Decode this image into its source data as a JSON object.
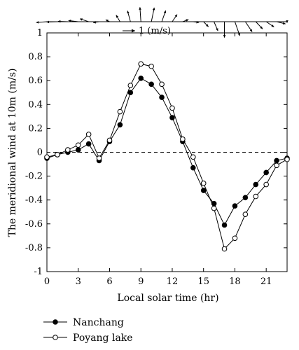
{
  "chart_data": {
    "type": "line",
    "xlabel": "Local solar time (hr)",
    "ylabel": "The meridional wind at 10m (m/s)",
    "xlim": [
      0,
      23
    ],
    "ylim": [
      -1,
      1
    ],
    "xticks": [
      0,
      3,
      6,
      9,
      12,
      15,
      18,
      21
    ],
    "yticks": [
      -1,
      -0.8,
      -0.6,
      -0.4,
      -0.2,
      0,
      0.2,
      0.4,
      0.6,
      0.8,
      1
    ],
    "ytick_labels": [
      "-1",
      "-0.8",
      "-0.6",
      "-0.4",
      "-0.2",
      "0",
      "0.2",
      "0.4",
      "0.6",
      "0.8",
      "1"
    ],
    "zero_line": "dashed",
    "grid": false,
    "legend_position": "bottom-left, below plot",
    "x": [
      0,
      1,
      2,
      3,
      4,
      5,
      6,
      7,
      8,
      9,
      10,
      11,
      12,
      13,
      14,
      15,
      16,
      17,
      18,
      19,
      20,
      21,
      22,
      23
    ],
    "series": [
      {
        "name": "Nanchang",
        "marker": "filled-circle",
        "values": [
          -0.05,
          -0.02,
          0.0,
          0.02,
          0.07,
          -0.07,
          0.09,
          0.23,
          0.5,
          0.62,
          0.57,
          0.46,
          0.29,
          0.09,
          -0.13,
          -0.32,
          -0.43,
          -0.61,
          -0.45,
          -0.38,
          -0.27,
          -0.17,
          -0.07,
          -0.05
        ]
      },
      {
        "name": "Poyang lake",
        "marker": "open-circle",
        "values": [
          -0.04,
          -0.02,
          0.02,
          0.06,
          0.15,
          -0.05,
          0.1,
          0.34,
          0.56,
          0.74,
          0.72,
          0.57,
          0.37,
          0.11,
          -0.04,
          -0.26,
          -0.47,
          -0.81,
          -0.72,
          -0.52,
          -0.37,
          -0.27,
          -0.11,
          -0.06
        ]
      }
    ],
    "wind_vectors": {
      "scale_label": "1 (m/s)",
      "hours": [
        0,
        1,
        2,
        3,
        4,
        5,
        6,
        7,
        8,
        9,
        10,
        11,
        12,
        13,
        14,
        15,
        16,
        17,
        18,
        19,
        20,
        21,
        22,
        23
      ],
      "u": [
        -0.55,
        -0.55,
        -0.5,
        -0.5,
        -0.45,
        -0.3,
        -0.2,
        -0.2,
        -0.15,
        -0.05,
        0.15,
        0.2,
        0.25,
        0.3,
        0.3,
        0.25,
        0.2,
        0.0,
        0.25,
        0.35,
        0.35,
        0.4,
        0.45,
        0.0
      ],
      "v": [
        -0.04,
        -0.02,
        0.02,
        0.06,
        0.15,
        -0.05,
        0.1,
        0.34,
        0.56,
        0.74,
        0.72,
        0.57,
        0.37,
        0.11,
        -0.04,
        -0.26,
        -0.47,
        -0.81,
        -0.72,
        -0.52,
        -0.37,
        -0.27,
        -0.11,
        -0.06
      ]
    }
  }
}
